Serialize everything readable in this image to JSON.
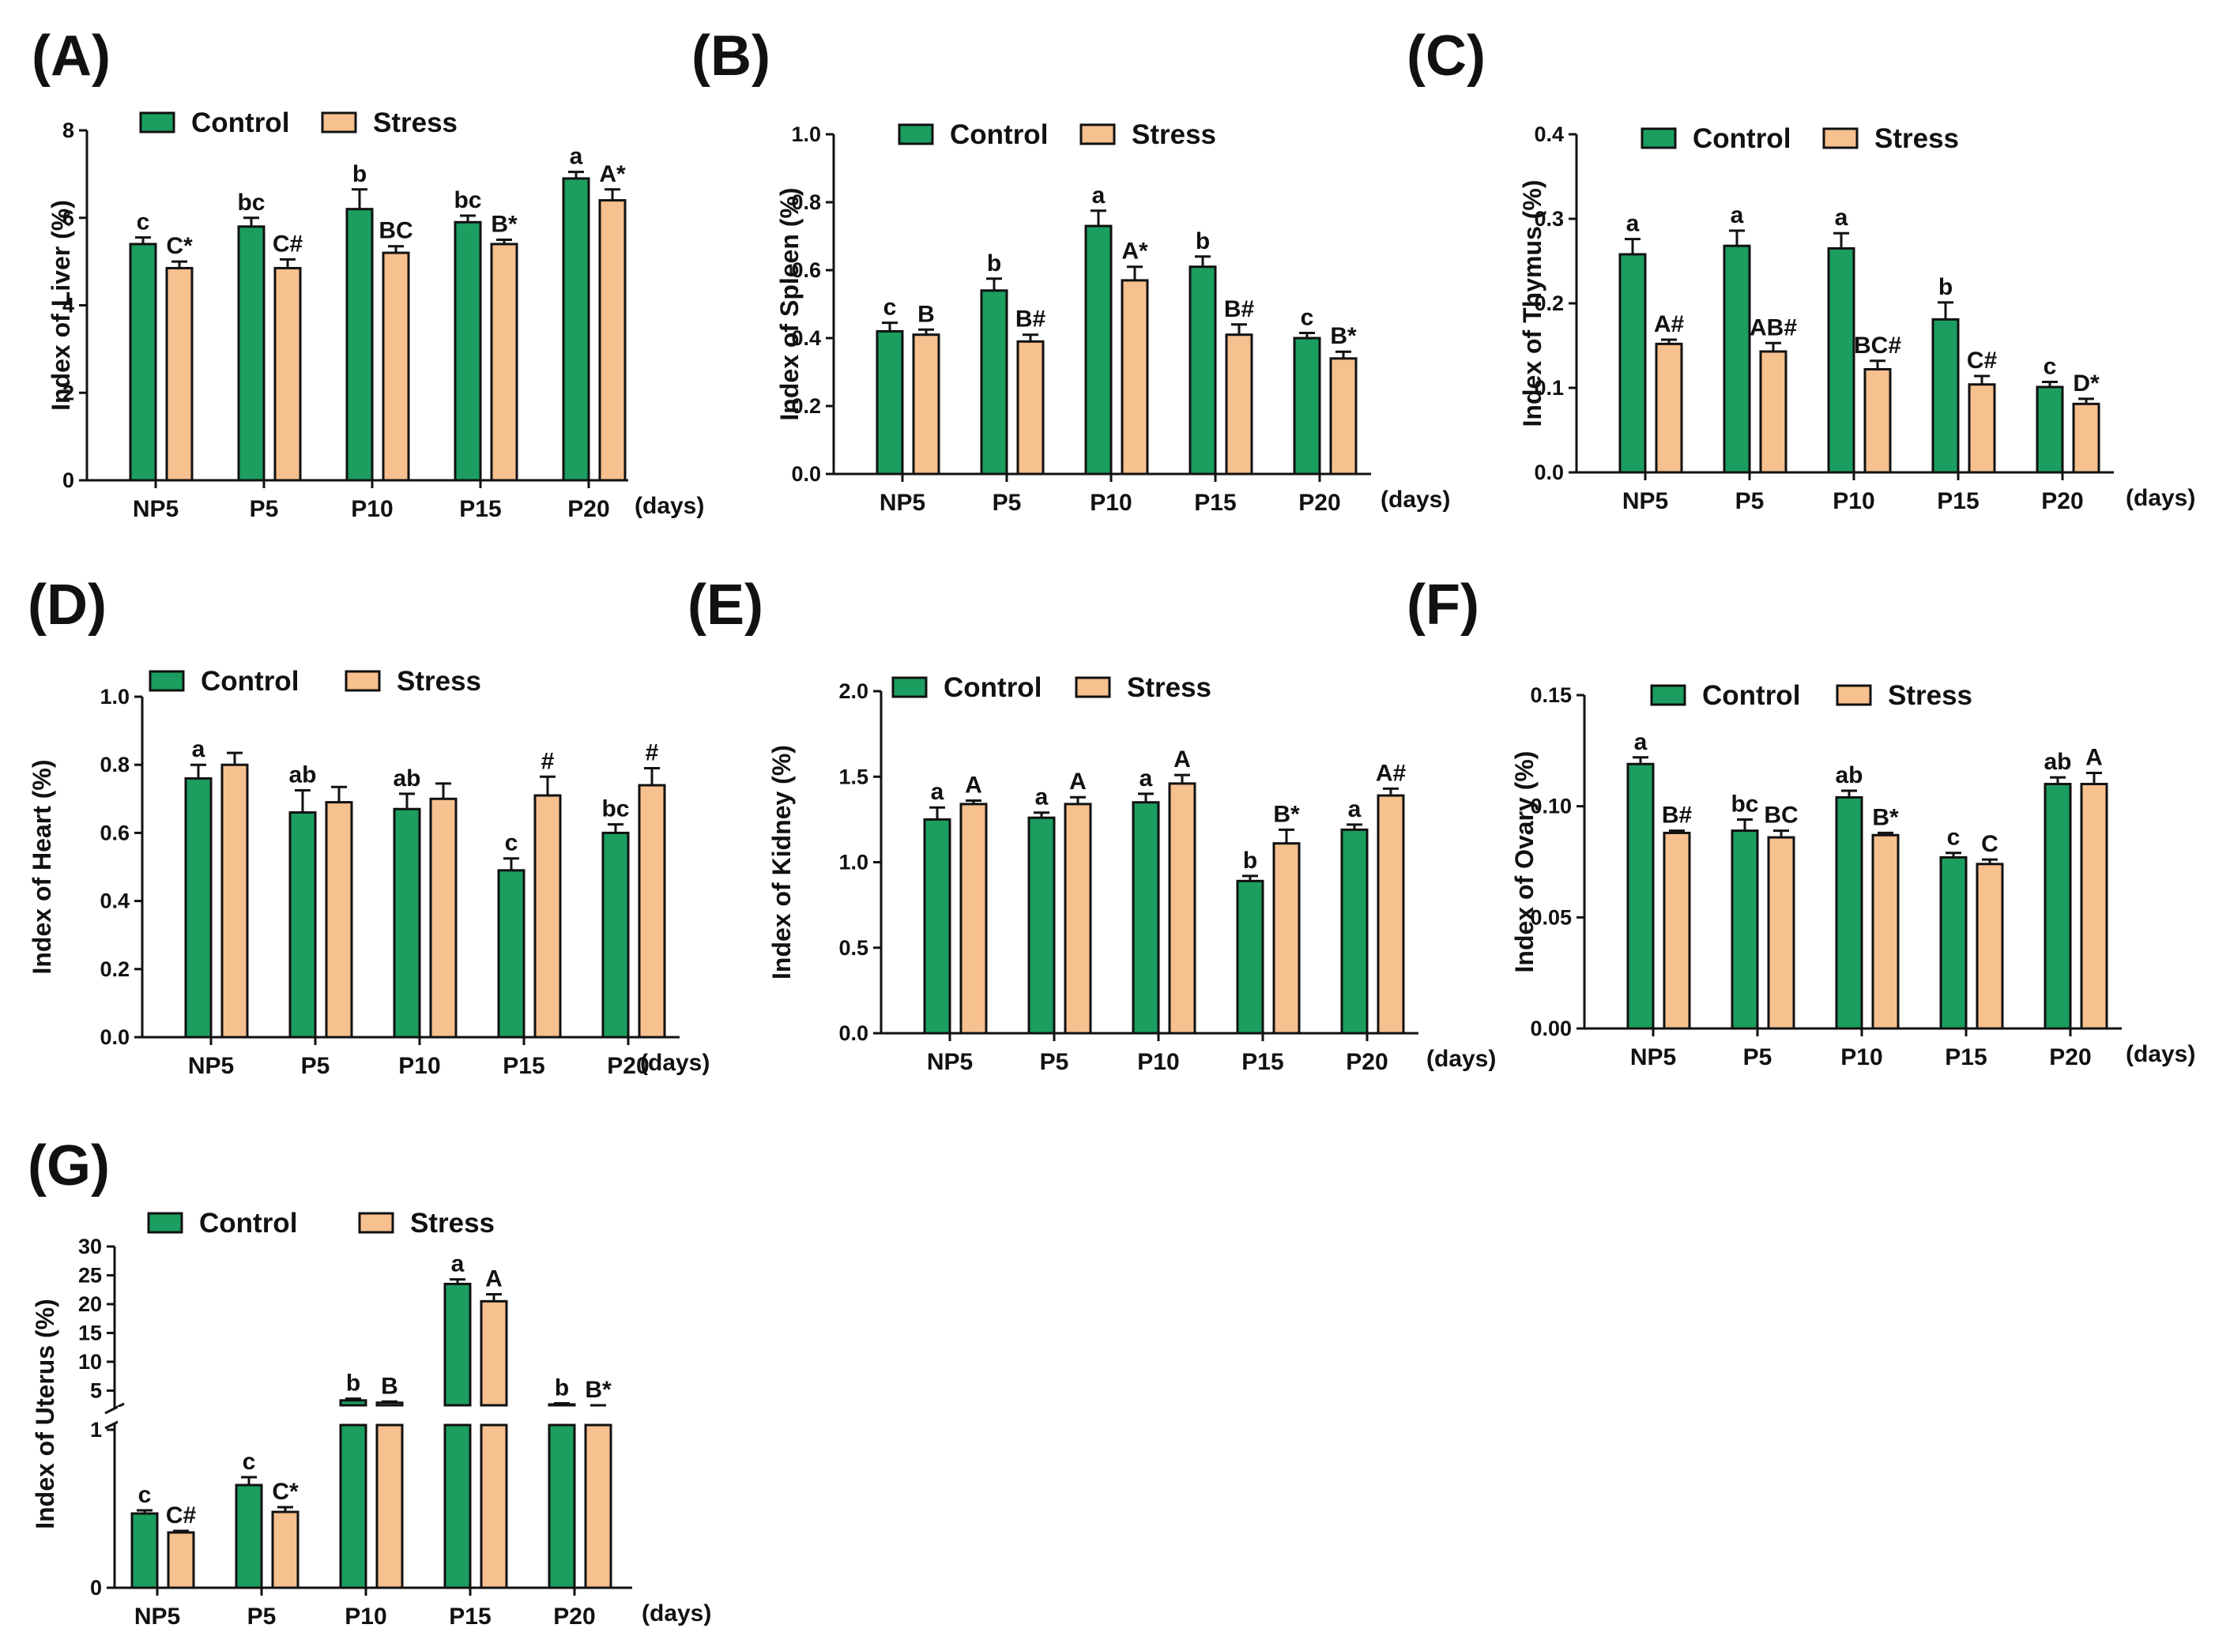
{
  "colors": {
    "control": "#1b9e5f",
    "stress": "#f7c08f",
    "axis": "#111111"
  },
  "chart_data": [
    {
      "type": "bar",
      "label": "(A)",
      "ylabel": "Index of Liver (%)",
      "categories": [
        "NP5",
        "P5",
        "P10",
        "P15",
        "P20"
      ],
      "unit": "(days)",
      "ylim": [
        0,
        8
      ],
      "yticks": [
        "0",
        "2",
        "4",
        "6",
        "8"
      ],
      "legend": [
        "Control",
        "Stress"
      ],
      "series": [
        {
          "name": "Control",
          "values": [
            5.4,
            5.8,
            6.2,
            5.9,
            6.9
          ],
          "err": [
            0.15,
            0.2,
            0.45,
            0.15,
            0.15
          ],
          "sig": [
            "c",
            "bc",
            "b",
            "bc",
            "a"
          ]
        },
        {
          "name": "Stress",
          "values": [
            4.85,
            4.85,
            5.2,
            5.4,
            6.4
          ],
          "err": [
            0.15,
            0.2,
            0.15,
            0.1,
            0.25
          ],
          "sig": [
            "C*",
            "C#",
            "BC",
            "B*",
            "A*"
          ]
        }
      ]
    },
    {
      "type": "bar",
      "label": "(B)",
      "ylabel": "Index of Spleen (%)",
      "categories": [
        "NP5",
        "P5",
        "P10",
        "P15",
        "P20"
      ],
      "unit": "(days)",
      "ylim": [
        0,
        1
      ],
      "yticks": [
        "0.0",
        "0.2",
        "0.4",
        "0.6",
        "0.8",
        "1.0"
      ],
      "legend": [
        "Control",
        "Stress"
      ],
      "series": [
        {
          "name": "Control",
          "values": [
            0.42,
            0.54,
            0.73,
            0.61,
            0.4
          ],
          "err": [
            0.025,
            0.035,
            0.045,
            0.03,
            0.015
          ],
          "sig": [
            "c",
            "b",
            "a",
            "b",
            "c"
          ]
        },
        {
          "name": "Stress",
          "values": [
            0.41,
            0.39,
            0.57,
            0.41,
            0.34
          ],
          "err": [
            0.015,
            0.02,
            0.04,
            0.03,
            0.02
          ],
          "sig": [
            "B",
            "B#",
            "A*",
            "B#",
            "B*"
          ]
        }
      ]
    },
    {
      "type": "bar",
      "label": "(C)",
      "ylabel": "Index of Thymus (%)",
      "categories": [
        "NP5",
        "P5",
        "P10",
        "P15",
        "P20"
      ],
      "unit": "(days)",
      "ylim": [
        0,
        0.4
      ],
      "yticks": [
        "0.0",
        "0.1",
        "0.2",
        "0.3",
        "0.4"
      ],
      "legend": [
        "Control",
        "Stress"
      ],
      "series": [
        {
          "name": "Control",
          "values": [
            0.258,
            0.268,
            0.265,
            0.181,
            0.101
          ],
          "err": [
            0.018,
            0.018,
            0.018,
            0.02,
            0.006
          ],
          "sig": [
            "a",
            "a",
            "a",
            "b",
            "c"
          ]
        },
        {
          "name": "Stress",
          "values": [
            0.152,
            0.143,
            0.122,
            0.104,
            0.081
          ],
          "err": [
            0.005,
            0.01,
            0.01,
            0.01,
            0.006
          ],
          "sig": [
            "A#",
            "AB#",
            "BC#",
            "C#",
            "D*"
          ]
        }
      ]
    },
    {
      "type": "bar",
      "label": "(D)",
      "ylabel": "Index of Heart (%)",
      "categories": [
        "NP5",
        "P5",
        "P10",
        "P15",
        "P20"
      ],
      "unit": "(days)",
      "ylim": [
        0,
        1
      ],
      "yticks": [
        "0.0",
        "0.2",
        "0.4",
        "0.6",
        "0.8",
        "1.0"
      ],
      "legend": [
        "Control",
        "Stress"
      ],
      "series": [
        {
          "name": "Control",
          "values": [
            0.76,
            0.66,
            0.67,
            0.49,
            0.6
          ],
          "err": [
            0.04,
            0.065,
            0.045,
            0.035,
            0.025
          ],
          "sig": [
            "a",
            "ab",
            "ab",
            "c",
            "bc"
          ]
        },
        {
          "name": "Stress",
          "values": [
            0.8,
            0.69,
            0.7,
            0.71,
            0.74
          ],
          "err": [
            0.035,
            0.045,
            0.045,
            0.055,
            0.05
          ],
          "sig": [
            "",
            "",
            "",
            "#",
            "#"
          ]
        }
      ]
    },
    {
      "type": "bar",
      "label": "(E)",
      "ylabel": "Index of Kidney (%)",
      "categories": [
        "NP5",
        "P5",
        "P10",
        "P15",
        "P20"
      ],
      "unit": "(days)",
      "ylim": [
        0,
        2
      ],
      "yticks": [
        "0.0",
        "0.5",
        "1.0",
        "1.5",
        "2.0"
      ],
      "legend": [
        "Control",
        "Stress"
      ],
      "series": [
        {
          "name": "Control",
          "values": [
            1.25,
            1.26,
            1.35,
            0.89,
            1.19
          ],
          "err": [
            0.07,
            0.03,
            0.05,
            0.03,
            0.03
          ],
          "sig": [
            "a",
            "a",
            "a",
            "b",
            "a"
          ]
        },
        {
          "name": "Stress",
          "values": [
            1.34,
            1.34,
            1.46,
            1.11,
            1.39
          ],
          "err": [
            0.02,
            0.04,
            0.05,
            0.08,
            0.04
          ],
          "sig": [
            "A",
            "A",
            "A",
            "B*",
            "A#"
          ]
        }
      ]
    },
    {
      "type": "bar",
      "label": "(F)",
      "ylabel": "Index of Ovary (%)",
      "categories": [
        "NP5",
        "P5",
        "P10",
        "P15",
        "P20"
      ],
      "unit": "(days)",
      "ylim": [
        0,
        0.15
      ],
      "yticks": [
        "0.00",
        "0.05",
        "0.10",
        "0.15"
      ],
      "legend": [
        "Control",
        "Stress"
      ],
      "series": [
        {
          "name": "Control",
          "values": [
            0.119,
            0.089,
            0.104,
            0.077,
            0.11
          ],
          "err": [
            0.003,
            0.005,
            0.003,
            0.002,
            0.003
          ],
          "sig": [
            "a",
            "bc",
            "ab",
            "c",
            "ab"
          ]
        },
        {
          "name": "Stress",
          "values": [
            0.088,
            0.086,
            0.087,
            0.074,
            0.11
          ],
          "err": [
            0.001,
            0.003,
            0.001,
            0.002,
            0.005
          ],
          "sig": [
            "B#",
            "BC",
            "B*",
            "C",
            "A"
          ]
        }
      ]
    },
    {
      "type": "bar",
      "label": "(G)",
      "ylabel": "Index of Uterus (%)",
      "categories": [
        "NP5",
        "P5",
        "P10",
        "P15",
        "P20"
      ],
      "unit": "(days)",
      "yaxis_break": {
        "lower": [
          0,
          1
        ],
        "upper": [
          3,
          30
        ]
      },
      "yticks_lower": [
        "0",
        "1"
      ],
      "yticks_upper": [
        "5",
        "10",
        "15",
        "20",
        "25",
        "30"
      ],
      "legend": [
        "Control",
        "Stress"
      ],
      "series": [
        {
          "name": "Control",
          "values": [
            0.47,
            0.65,
            3.3,
            23.5,
            2.6
          ],
          "err": [
            0.02,
            0.05,
            0.3,
            0.8,
            0.2
          ],
          "sig": [
            "c",
            "c",
            "b",
            "a",
            "b"
          ]
        },
        {
          "name": "Stress",
          "values": [
            0.35,
            0.48,
            2.9,
            20.5,
            2.3
          ],
          "err": [
            0.01,
            0.03,
            0.2,
            1.2,
            0.15
          ],
          "sig": [
            "C#",
            "C*",
            "B",
            "A",
            "B*"
          ]
        }
      ]
    }
  ]
}
